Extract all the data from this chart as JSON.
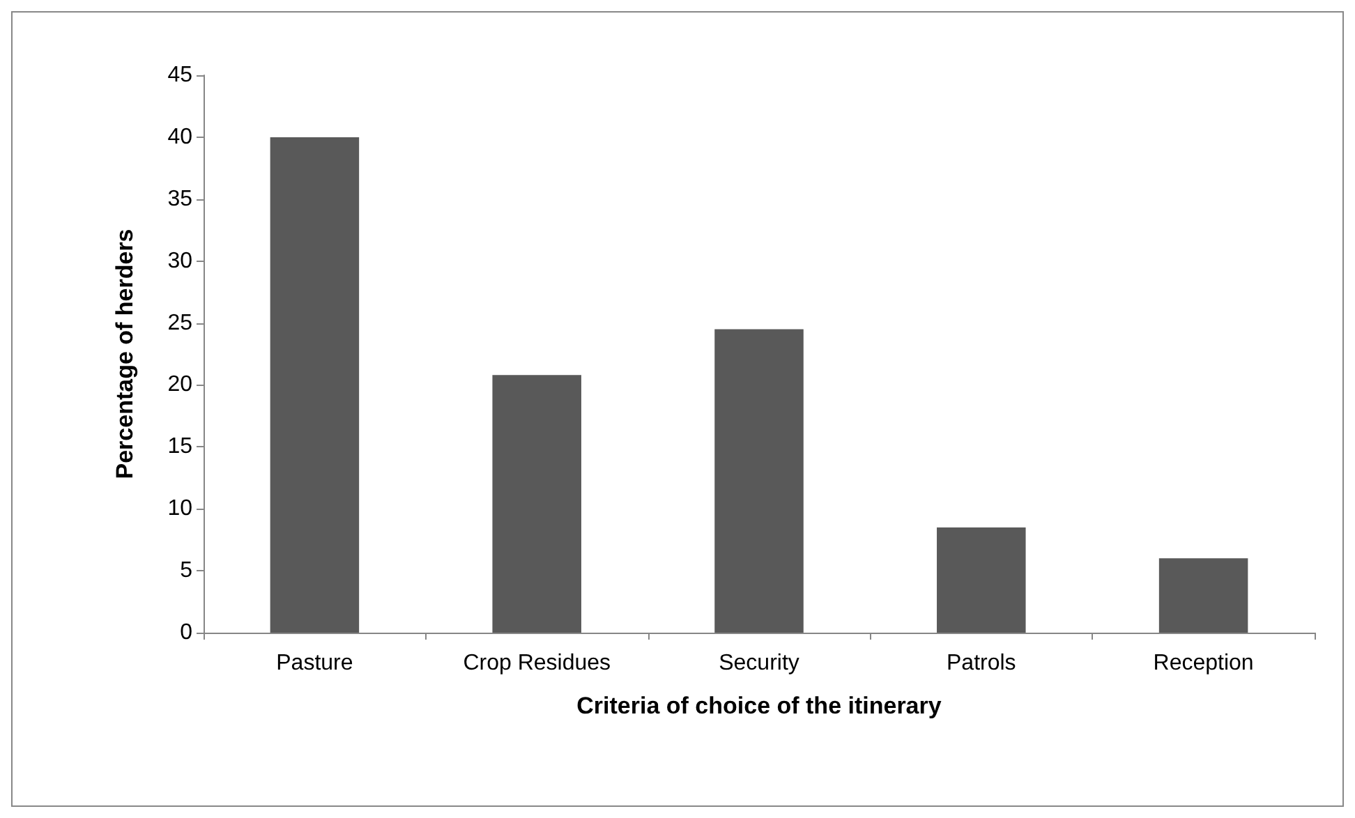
{
  "chart_data": {
    "type": "bar",
    "xlabel": "Criteria of choice of the itinerary",
    "ylabel": "Percentage of herders",
    "categories": [
      "Pasture",
      "Crop Residues",
      "Security",
      "Patrols",
      "Reception"
    ],
    "values": [
      40,
      20.8,
      24.5,
      8.5,
      6
    ],
    "color": "#595959",
    "ylim": [
      0,
      45
    ],
    "yticks": [
      0,
      5,
      10,
      15,
      20,
      25,
      30,
      35,
      40,
      45
    ],
    "grid": false
  }
}
